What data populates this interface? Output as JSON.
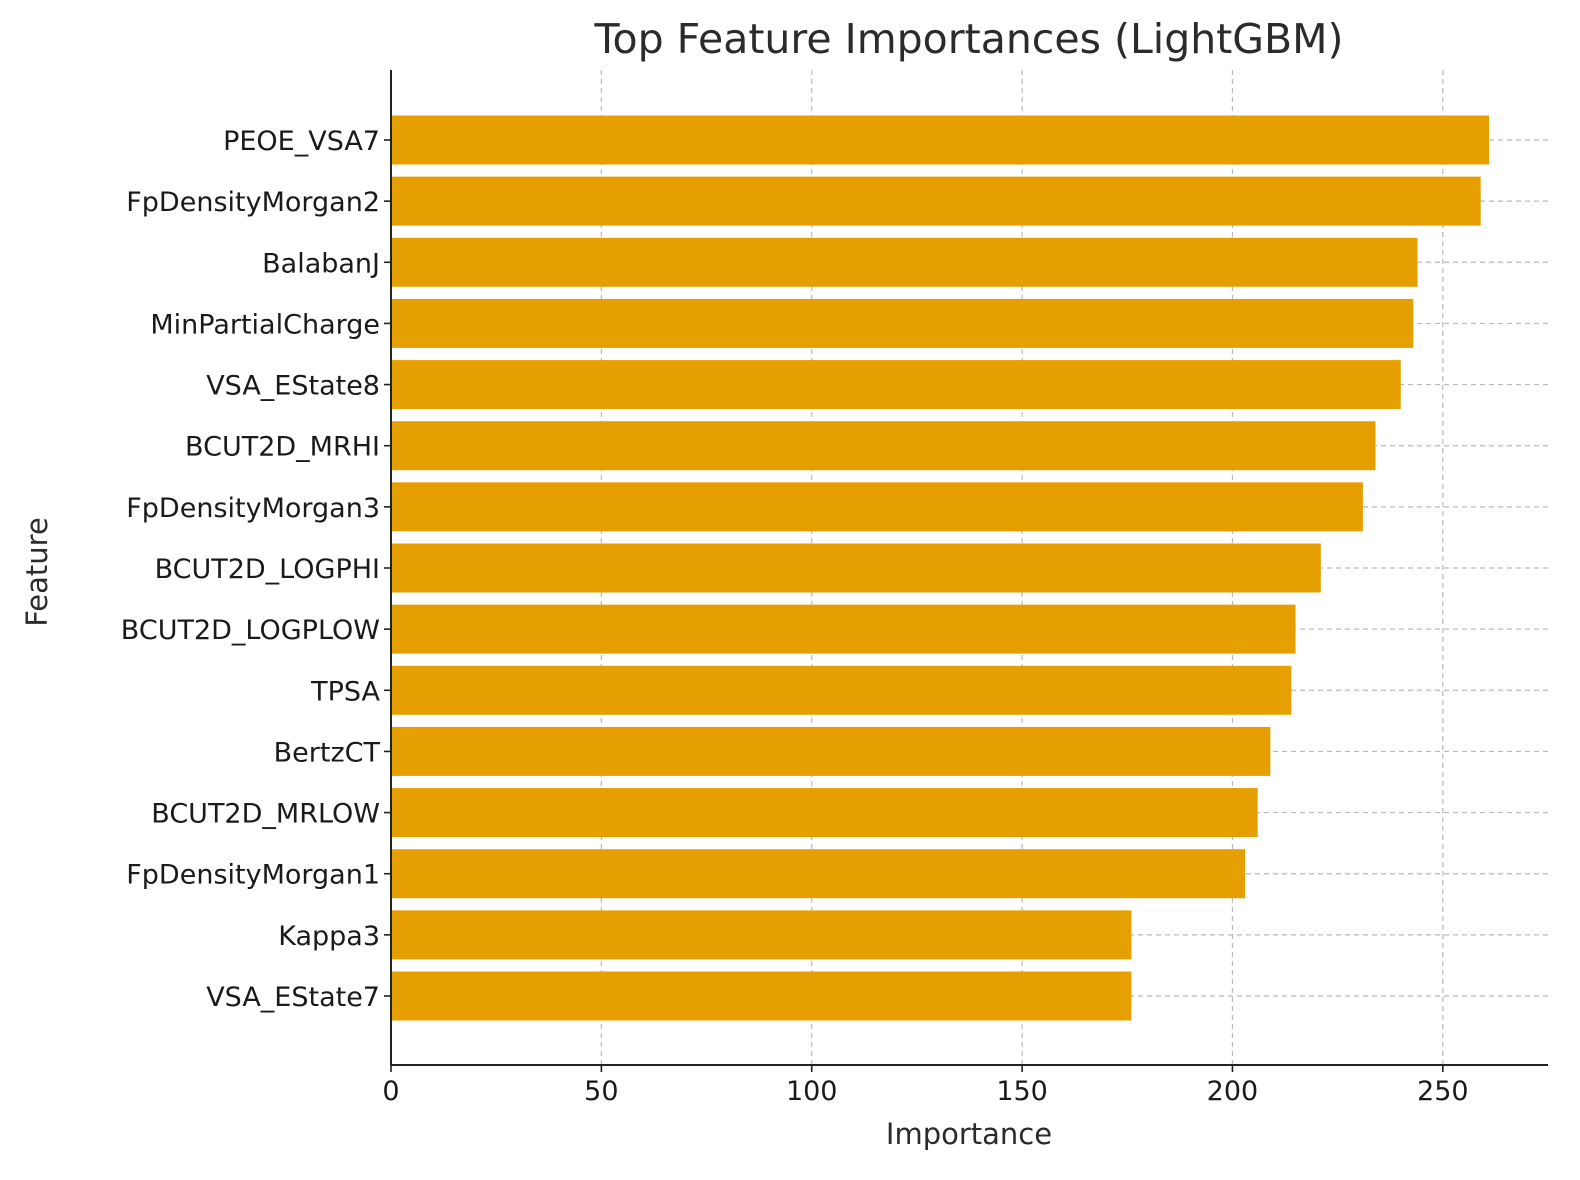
{
  "chart_data": {
    "type": "bar",
    "orientation": "horizontal",
    "title": "Top Feature Importances (LightGBM)",
    "xlabel": "Importance",
    "ylabel": "Feature",
    "xlim": [
      0,
      275
    ],
    "xticks": [
      0,
      50,
      100,
      150,
      200,
      250
    ],
    "grid": true,
    "bar_color": "#E69F00",
    "categories": [
      "PEOE_VSA7",
      "FpDensityMorgan2",
      "BalabanJ",
      "MinPartialCharge",
      "VSA_EState8",
      "BCUT2D_MRHI",
      "FpDensityMorgan3",
      "BCUT2D_LOGPHI",
      "BCUT2D_LOGPLOW",
      "TPSA",
      "BertzCT",
      "BCUT2D_MRLOW",
      "FpDensityMorgan1",
      "Kappa3",
      "VSA_EState7"
    ],
    "values": [
      261,
      259,
      244,
      243,
      240,
      234,
      231,
      221,
      215,
      214,
      209,
      206,
      203,
      176,
      176
    ]
  }
}
